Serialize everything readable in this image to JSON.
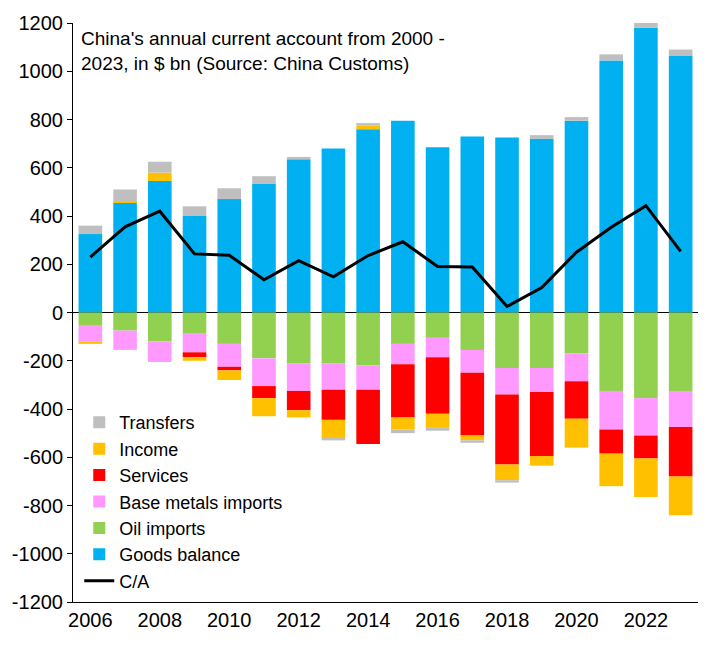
{
  "chart_data": {
    "type": "bar",
    "stacked": true,
    "title": [
      "China's annual current account from 2000 -",
      "2023, in $ bn (Source: China Customs)"
    ],
    "x": [
      2006,
      2007,
      2008,
      2009,
      2010,
      2011,
      2012,
      2013,
      2014,
      2015,
      2016,
      2017,
      2018,
      2019,
      2020,
      2021,
      2022,
      2023
    ],
    "xlim": [
      2005.5,
      2023.5
    ],
    "xticks": [
      2006,
      2008,
      2010,
      2012,
      2014,
      2016,
      2018,
      2020,
      2022
    ],
    "ylim": [
      -1200,
      1200
    ],
    "yticks": [
      -1200,
      -1000,
      -800,
      -600,
      -400,
      -200,
      0,
      200,
      400,
      600,
      800,
      1000,
      1200
    ],
    "grid": false,
    "legend": "lower left",
    "series": [
      {
        "name": "Transfers",
        "type": "bar",
        "color": "#BFBFBF",
        "values": [
          35,
          48,
          45,
          40,
          45,
          30,
          10,
          -10,
          10,
          -15,
          -15,
          -10,
          -10,
          15,
          15,
          25,
          20,
          25
        ]
      },
      {
        "name": "Income",
        "type": "bar",
        "color": "#FFC000",
        "values": [
          -10,
          7,
          35,
          -15,
          -40,
          -75,
          -30,
          -75,
          15,
          -50,
          -55,
          -20,
          -65,
          -40,
          -120,
          -135,
          -160,
          -160
        ]
      },
      {
        "name": "Services",
        "type": "bar",
        "color": "#FF0000",
        "values": [
          0,
          0,
          0,
          -20,
          -15,
          -50,
          -80,
          -125,
          -225,
          -220,
          -235,
          -260,
          -290,
          -265,
          -155,
          -100,
          -95,
          -205
        ]
      },
      {
        "name": "Base metals imports",
        "type": "bar",
        "color": "#FF99FF",
        "values": [
          -65,
          -80,
          -85,
          -80,
          -95,
          -115,
          -115,
          -110,
          -100,
          -85,
          -80,
          -95,
          -110,
          -100,
          -115,
          -160,
          -155,
          -150
        ]
      },
      {
        "name": "Oil imports",
        "type": "bar",
        "color": "#92D050",
        "values": [
          -55,
          -75,
          -120,
          -85,
          -130,
          -190,
          -210,
          -210,
          -220,
          -130,
          -105,
          -155,
          -230,
          -230,
          -170,
          -325,
          -355,
          -325
        ]
      },
      {
        "name": "Goods balance",
        "type": "bar",
        "color": "#00B0F0",
        "values": [
          325,
          455,
          545,
          400,
          470,
          535,
          635,
          680,
          760,
          795,
          685,
          730,
          725,
          720,
          795,
          1045,
          1180,
          1065
        ]
      },
      {
        "name": "C/A",
        "type": "line",
        "color": "#000000",
        "values": [
          230,
          355,
          420,
          243,
          237,
          136,
          215,
          148,
          236,
          293,
          191,
          189,
          25,
          103,
          250,
          353,
          443,
          253
        ]
      }
    ]
  }
}
